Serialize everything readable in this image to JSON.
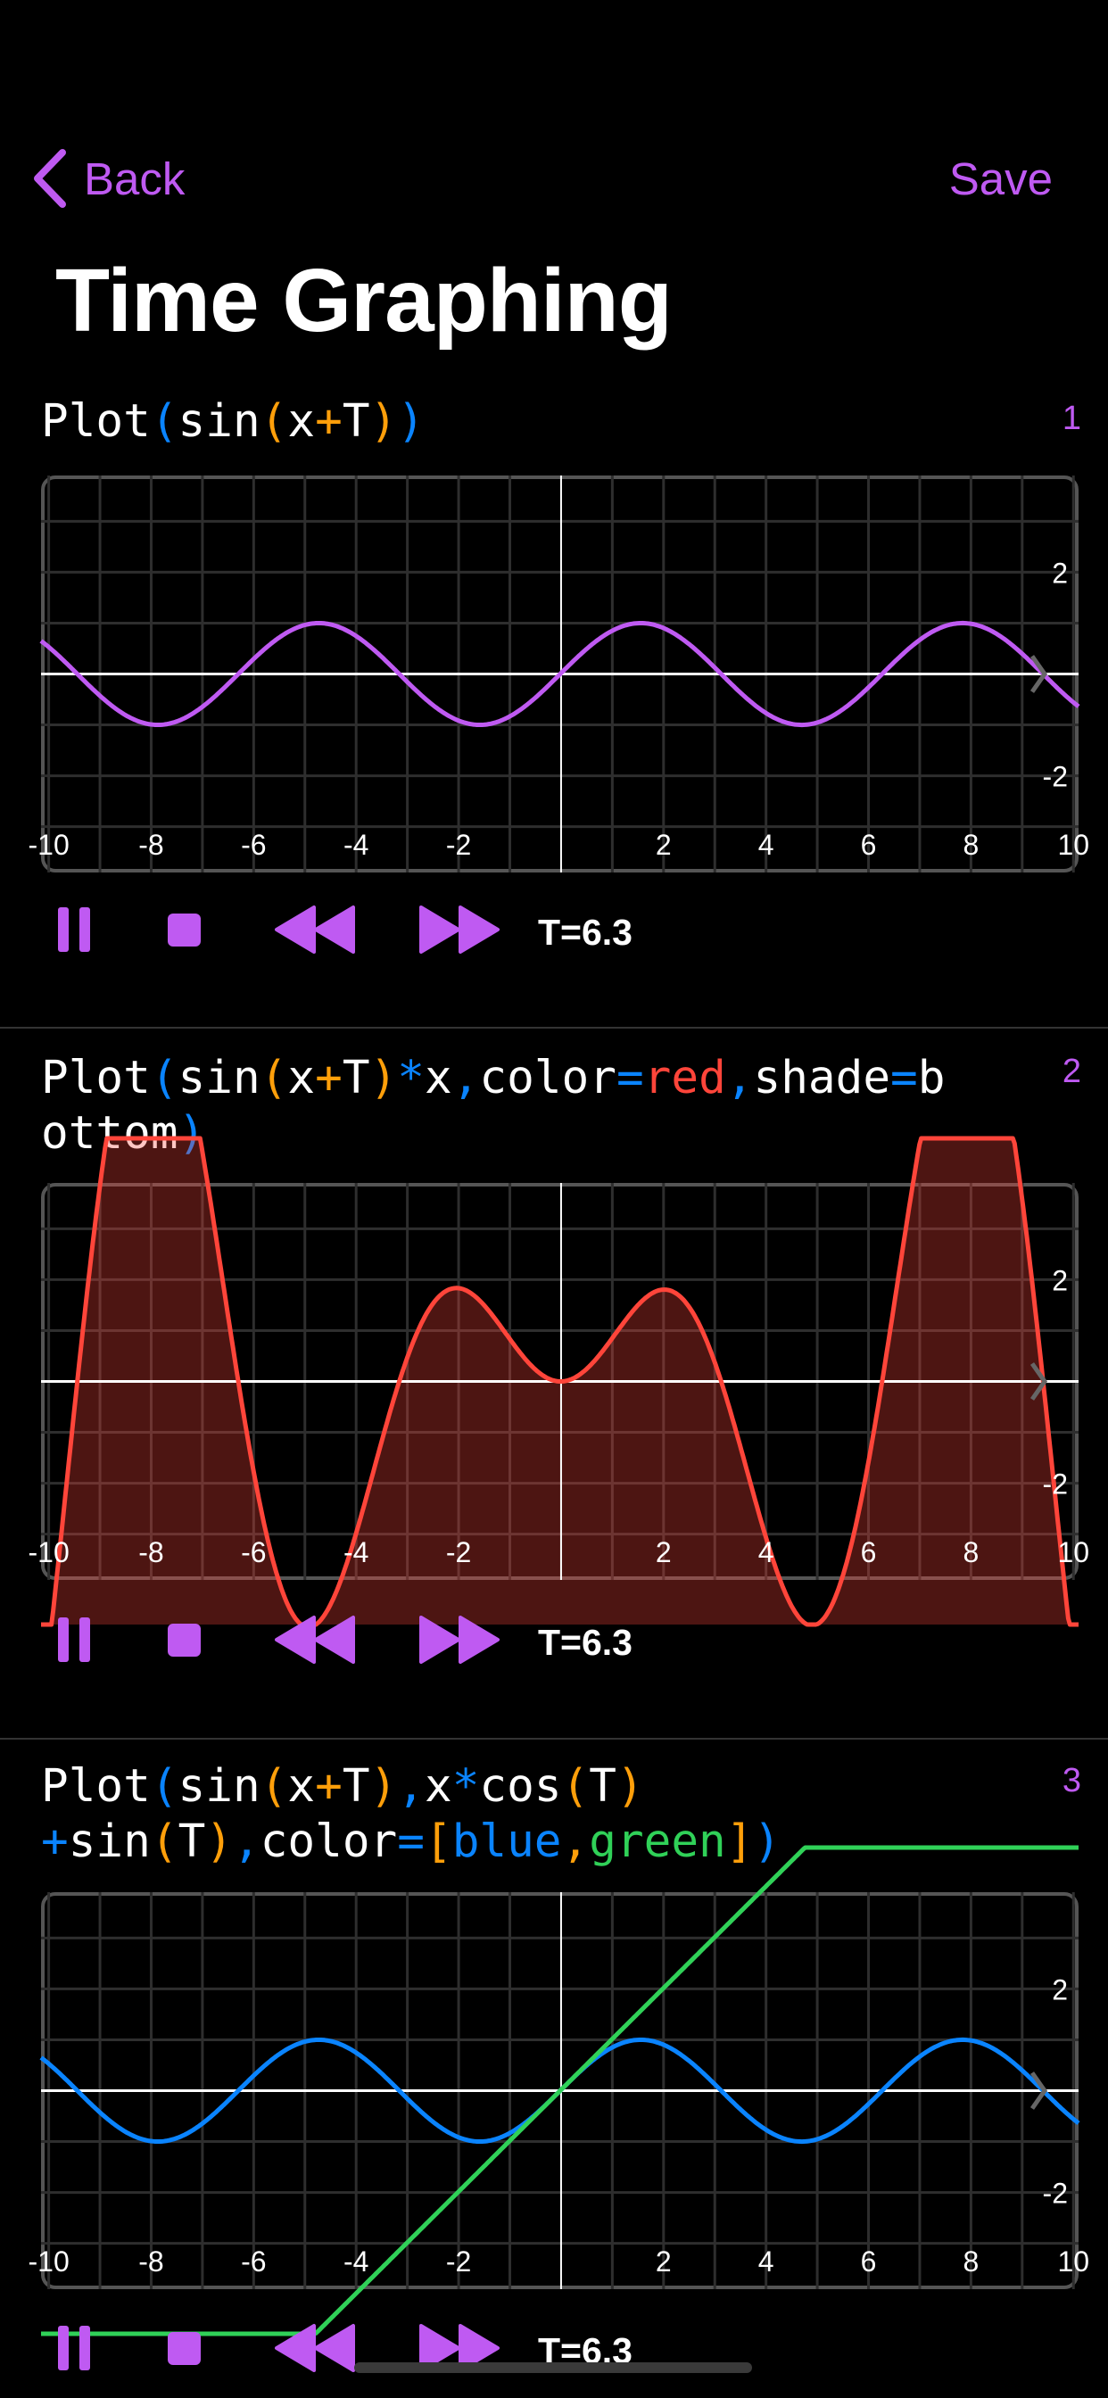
{
  "nav": {
    "back_label": "Back",
    "save_label": "Save",
    "title": "Time Graphing"
  },
  "colors": {
    "accent": "#BF5AF2",
    "blue": "#0A84FF",
    "orange": "#FF9F0A",
    "red": "#FF453A",
    "green": "#30D158",
    "text": "#FFFFFF"
  },
  "sections": [
    {
      "index": "1",
      "formula_lines": [
        [
          {
            "t": "Plot",
            "c": "text"
          },
          {
            "t": "(",
            "c": "blue"
          },
          {
            "t": "sin",
            "c": "text"
          },
          {
            "t": "(",
            "c": "orange"
          },
          {
            "t": "x",
            "c": "text"
          },
          {
            "t": "+",
            "c": "orange"
          },
          {
            "t": "T",
            "c": "text"
          },
          {
            "t": ")",
            "c": "orange"
          },
          {
            "t": ")",
            "c": "blue"
          }
        ]
      ],
      "controls": {
        "pause": "pause-icon",
        "stop": "stop-icon",
        "rewind": "rewind-icon",
        "fast_forward": "fast-forward-icon",
        "time_label": "T=6.3"
      }
    },
    {
      "index": "2",
      "formula_lines": [
        [
          {
            "t": "Plot",
            "c": "text"
          },
          {
            "t": "(",
            "c": "blue"
          },
          {
            "t": "sin",
            "c": "text"
          },
          {
            "t": "(",
            "c": "orange"
          },
          {
            "t": "x",
            "c": "text"
          },
          {
            "t": "+",
            "c": "orange"
          },
          {
            "t": "T",
            "c": "text"
          },
          {
            "t": ")",
            "c": "orange"
          },
          {
            "t": "*",
            "c": "blue"
          },
          {
            "t": "x",
            "c": "text"
          },
          {
            "t": ",",
            "c": "blue"
          },
          {
            "t": "color",
            "c": "text"
          },
          {
            "t": "=",
            "c": "blue"
          },
          {
            "t": "red",
            "c": "red"
          },
          {
            "t": ",",
            "c": "blue"
          },
          {
            "t": "shade",
            "c": "text"
          },
          {
            "t": "=",
            "c": "blue"
          },
          {
            "t": "b",
            "c": "text"
          }
        ],
        [
          {
            "t": "ottom",
            "c": "text"
          },
          {
            "t": ")",
            "c": "blue"
          }
        ]
      ],
      "controls": {
        "pause": "pause-icon",
        "stop": "stop-icon",
        "rewind": "rewind-icon",
        "fast_forward": "fast-forward-icon",
        "time_label": "T=6.3"
      }
    },
    {
      "index": "3",
      "formula_lines": [
        [
          {
            "t": "Plot",
            "c": "text"
          },
          {
            "t": "(",
            "c": "blue"
          },
          {
            "t": "sin",
            "c": "text"
          },
          {
            "t": "(",
            "c": "orange"
          },
          {
            "t": "x",
            "c": "text"
          },
          {
            "t": "+",
            "c": "orange"
          },
          {
            "t": "T",
            "c": "text"
          },
          {
            "t": ")",
            "c": "orange"
          },
          {
            "t": ",",
            "c": "blue"
          },
          {
            "t": "x",
            "c": "text"
          },
          {
            "t": "*",
            "c": "blue"
          },
          {
            "t": "cos",
            "c": "text"
          },
          {
            "t": "(",
            "c": "orange"
          },
          {
            "t": "T",
            "c": "text"
          },
          {
            "t": ")",
            "c": "orange"
          }
        ],
        [
          {
            "t": "+",
            "c": "blue"
          },
          {
            "t": "sin",
            "c": "text"
          },
          {
            "t": "(",
            "c": "orange"
          },
          {
            "t": "T",
            "c": "text"
          },
          {
            "t": ")",
            "c": "orange"
          },
          {
            "t": ",",
            "c": "blue"
          },
          {
            "t": "color",
            "c": "text"
          },
          {
            "t": "=",
            "c": "blue"
          },
          {
            "t": "[",
            "c": "orange"
          },
          {
            "t": "blue",
            "c": "blue"
          },
          {
            "t": ",",
            "c": "orange"
          },
          {
            "t": "green",
            "c": "green"
          },
          {
            "t": "]",
            "c": "orange"
          },
          {
            "t": ")",
            "c": "blue"
          }
        ]
      ],
      "controls": {
        "pause": "pause-icon",
        "stop": "stop-icon",
        "rewind": "rewind-icon",
        "fast_forward": "fast-forward-icon",
        "time_label": "T=6.3"
      }
    }
  ],
  "chart_data": [
    {
      "type": "line",
      "T": 6.3,
      "xlim": [
        -10.15,
        10.1
      ],
      "ylim": [
        -3.9,
        3.9
      ],
      "grid": true,
      "x_tick_labels": [
        "-10",
        "-8",
        "-6",
        "-4",
        "-2",
        "2",
        "4",
        "6",
        "8",
        "10"
      ],
      "x_ticks": [
        -10,
        -8,
        -6,
        -4,
        -2,
        2,
        4,
        6,
        8,
        10
      ],
      "y_tick_labels": [
        "2",
        "-2"
      ],
      "y_ticks": [
        2,
        -2
      ],
      "series": [
        {
          "expression": "sin(x+T)",
          "color": "#BF5AF2",
          "shade": "none"
        }
      ]
    },
    {
      "type": "area",
      "T": 6.3,
      "xlim": [
        -10.15,
        10.1
      ],
      "ylim": [
        -3.9,
        3.9
      ],
      "grid": true,
      "x_tick_labels": [
        "-10",
        "-8",
        "-6",
        "-4",
        "-2",
        "2",
        "4",
        "6",
        "8",
        "10"
      ],
      "x_ticks": [
        -10,
        -8,
        -6,
        -4,
        -2,
        2,
        4,
        6,
        8,
        10
      ],
      "y_tick_labels": [
        "2",
        "-2"
      ],
      "y_ticks": [
        2,
        -2
      ],
      "series": [
        {
          "expression": "sin(x+T)*x",
          "color": "#FF453A",
          "shade": "bottom"
        }
      ]
    },
    {
      "type": "line",
      "T": 6.3,
      "xlim": [
        -10.15,
        10.1
      ],
      "ylim": [
        -3.9,
        3.9
      ],
      "grid": true,
      "x_tick_labels": [
        "-10",
        "-8",
        "-6",
        "-4",
        "-2",
        "2",
        "4",
        "6",
        "8",
        "10"
      ],
      "x_ticks": [
        -10,
        -8,
        -6,
        -4,
        -2,
        2,
        4,
        6,
        8,
        10
      ],
      "y_tick_labels": [
        "2",
        "-2"
      ],
      "y_ticks": [
        2,
        -2
      ],
      "series": [
        {
          "expression": "sin(x+T)",
          "color": "#0A84FF",
          "shade": "none"
        },
        {
          "expression": "x*cos(T)+sin(T)",
          "color": "#30D158",
          "shade": "none"
        }
      ]
    }
  ]
}
